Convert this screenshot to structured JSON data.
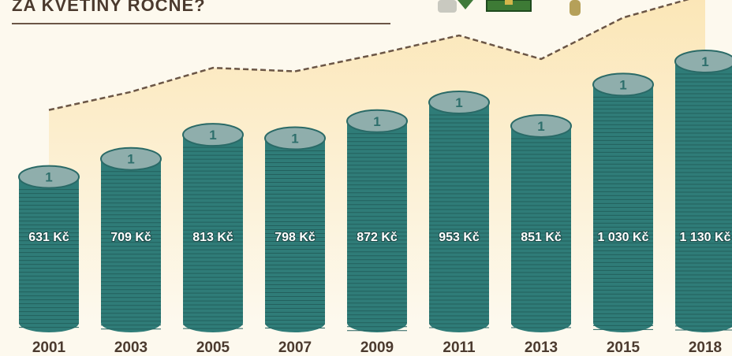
{
  "chart_data": {
    "type": "bar",
    "title": "ZA KVĚTINY ROČNĚ?",
    "categories": [
      "2001",
      "2003",
      "2005",
      "2007",
      "2009",
      "2011",
      "2013",
      "2015",
      "2018"
    ],
    "values": [
      631,
      709,
      813,
      798,
      872,
      953,
      851,
      1030,
      1130
    ],
    "value_labels": [
      "631 Kč",
      "709 Kč",
      "813 Kč",
      "798 Kč",
      "872 Kč",
      "953 Kč",
      "851 Kč",
      "1 030 Kč",
      "1 130 Kč"
    ],
    "coin_face": "1",
    "color": "#2f7c78"
  }
}
